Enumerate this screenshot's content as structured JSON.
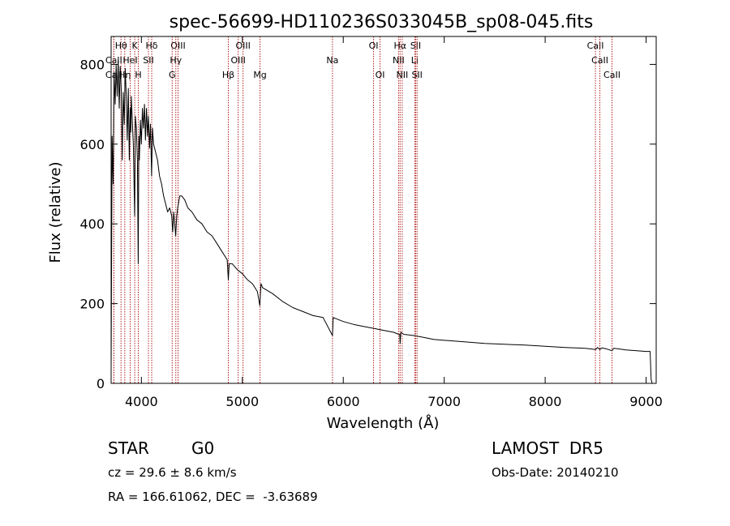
{
  "chart_data": {
    "type": "line",
    "title": "spec-56699-HD110236S033045B_sp08-045.fits",
    "xlabel": "Wavelength (Å)",
    "ylabel": "Flux (relative)",
    "xlim": [
      3700,
      9100
    ],
    "ylim": [
      0,
      870
    ],
    "xticks": [
      4000,
      5000,
      6000,
      7000,
      8000,
      9000
    ],
    "yticks": [
      0,
      200,
      400,
      600,
      800
    ],
    "grid": false,
    "series": [
      {
        "x": [
          3700,
          3710,
          3720,
          3730,
          3740,
          3750,
          3760,
          3770,
          3780,
          3790,
          3800,
          3810,
          3820,
          3830,
          3840,
          3850,
          3860,
          3870,
          3880,
          3889,
          3895,
          3900,
          3910,
          3920,
          3933,
          3940,
          3950,
          3960,
          3968,
          3975,
          3980,
          3990,
          4000,
          4010,
          4020,
          4030,
          4040,
          4050,
          4060,
          4070,
          4080,
          4090,
          4101,
          4110,
          4120,
          4140,
          4160,
          4180,
          4200,
          4220,
          4240,
          4260,
          4280,
          4300,
          4310,
          4320,
          4330,
          4340,
          4350,
          4360,
          4380,
          4400,
          4430,
          4460,
          4500,
          4550,
          4600,
          4650,
          4700,
          4750,
          4800,
          4850,
          4861,
          4870,
          4900,
          4950,
          5000,
          5050,
          5100,
          5150,
          5173,
          5185,
          5200,
          5300,
          5400,
          5500,
          5600,
          5700,
          5800,
          5893,
          5900,
          6000,
          6100,
          6200,
          6300,
          6400,
          6500,
          6560,
          6563,
          6570,
          6600,
          6700,
          6800,
          6900,
          7000,
          7200,
          7400,
          7600,
          7800,
          8000,
          8200,
          8400,
          8498,
          8520,
          8542,
          8560,
          8600,
          8662,
          8680,
          8800,
          9000,
          9040,
          9050,
          9060
        ],
        "y": [
          30,
          620,
          500,
          780,
          700,
          800,
          720,
          810,
          690,
          795,
          740,
          560,
          730,
          650,
          790,
          720,
          610,
          740,
          560,
          690,
          630,
          720,
          660,
          600,
          420,
          670,
          640,
          560,
          300,
          620,
          560,
          660,
          600,
          690,
          640,
          700,
          610,
          690,
          620,
          670,
          590,
          650,
          520,
          640,
          600,
          580,
          560,
          520,
          500,
          470,
          450,
          430,
          440,
          420,
          380,
          430,
          400,
          370,
          420,
          440,
          470,
          470,
          460,
          440,
          430,
          410,
          400,
          380,
          370,
          350,
          330,
          310,
          260,
          300,
          300,
          285,
          275,
          260,
          250,
          230,
          195,
          250,
          240,
          225,
          205,
          190,
          180,
          170,
          165,
          120,
          165,
          155,
          148,
          143,
          138,
          133,
          128,
          122,
          100,
          128,
          123,
          120,
          115,
          110,
          108,
          104,
          100,
          98,
          96,
          93,
          90,
          88,
          85,
          90,
          85,
          89,
          87,
          82,
          88,
          84,
          80,
          80,
          10,
          0
        ]
      }
    ],
    "lines": [
      {
        "label": "Hθ",
        "wl": 3798,
        "row": 0
      },
      {
        "label": "CaII",
        "wl": 3727,
        "row": 1
      },
      {
        "label": "CaII",
        "wl": 3727,
        "row": 2
      },
      {
        "label": "Hη",
        "wl": 3835,
        "row": 2
      },
      {
        "label": "K",
        "wl": 3934,
        "row": 0
      },
      {
        "label": "HeI",
        "wl": 3889,
        "row": 1
      },
      {
        "label": "H",
        "wl": 3969,
        "row": 2
      },
      {
        "label": "Hδ",
        "wl": 4102,
        "row": 0
      },
      {
        "label": "SII",
        "wl": 4070,
        "row": 1
      },
      {
        "label": "OIII",
        "wl": 4363,
        "row": 0
      },
      {
        "label": "Hγ",
        "wl": 4341,
        "row": 1
      },
      {
        "label": "G",
        "wl": 4305,
        "row": 2
      },
      {
        "label": "Hβ",
        "wl": 4861,
        "row": 2
      },
      {
        "label": "OIII",
        "wl": 4959,
        "row": 1
      },
      {
        "label": "OIII",
        "wl": 5007,
        "row": 0
      },
      {
        "label": "Mg",
        "wl": 5175,
        "row": 2
      },
      {
        "label": "Na",
        "wl": 5893,
        "row": 1
      },
      {
        "label": "OI",
        "wl": 6300,
        "row": 0
      },
      {
        "label": "OI",
        "wl": 6364,
        "row": 2
      },
      {
        "label": "Hα",
        "wl": 6563,
        "row": 0
      },
      {
        "label": "NII",
        "wl": 6548,
        "row": 1
      },
      {
        "label": "NII",
        "wl": 6584,
        "row": 2
      },
      {
        "label": "SII",
        "wl": 6717,
        "row": 0
      },
      {
        "label": "Li",
        "wl": 6708,
        "row": 1
      },
      {
        "label": "SII",
        "wl": 6731,
        "row": 2
      },
      {
        "label": "CaII",
        "wl": 8498,
        "row": 0
      },
      {
        "label": "CaII",
        "wl": 8542,
        "row": 1
      },
      {
        "label": "CaII",
        "wl": 8662,
        "row": 2
      }
    ],
    "line_color": "#b22222",
    "curve_color": "#000000"
  },
  "info": {
    "class": "STAR",
    "subclass": "G0",
    "redshift": "cz = 29.6 ± 8.6 km/s",
    "coords": "RA = 166.61062, DEC =  -3.63689",
    "survey": "LAMOST  DR5",
    "obs_date": "Obs-Date: 20140210"
  }
}
